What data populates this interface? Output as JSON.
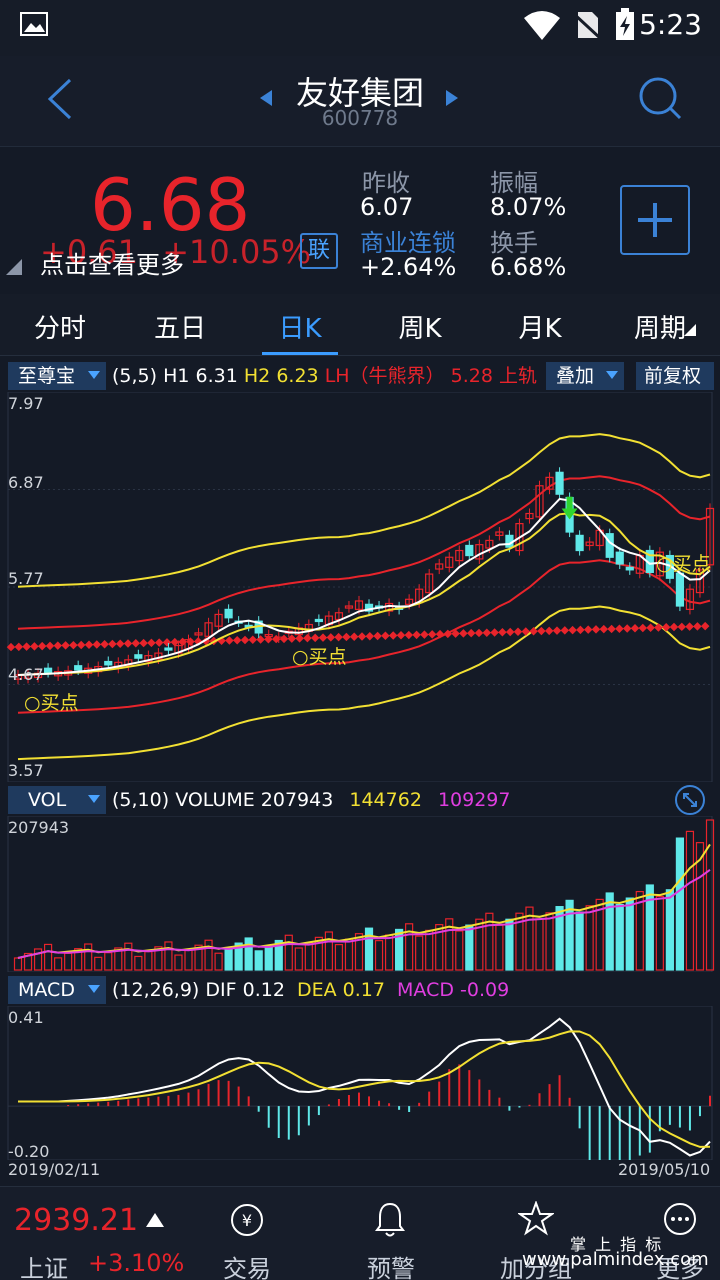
{
  "status": {
    "time": "5:23"
  },
  "header": {
    "title": "友好集团",
    "code": "600778"
  },
  "quote": {
    "price": "6.68",
    "change": "+0.61",
    "change_pct": "+10.05%",
    "overlay_hint": "点击查看更多",
    "lian_label": "联",
    "prev_close_label": "昨收",
    "prev_close": "6.07",
    "amplitude_label": "振幅",
    "amplitude": "8.07%",
    "sector_label": "商业连锁",
    "sector_change": "+2.64%",
    "turnover_label": "换手",
    "turnover": "6.68%",
    "colors": {
      "up": "#e8242b",
      "link": "#3b82d6"
    }
  },
  "tabs": [
    "分时",
    "五日",
    "日K",
    "周K",
    "月K",
    "周期"
  ],
  "active_tab": 2,
  "kline": {
    "indicator_name": "至尊宝",
    "params": "(5,5)",
    "h1_label": "H1",
    "h1": "6.31",
    "h2_label": "H2",
    "h2": "6.23",
    "lh_label": "LH（牛熊界）",
    "lh": "5.28",
    "upper_label": "上轨",
    "overlay_btn": "叠加",
    "adjust_btn": "前复权",
    "axis": [
      "7.97",
      "6.87",
      "5.77",
      "4.67",
      "3.57"
    ],
    "buy_label": "○买点"
  },
  "volume": {
    "indicator_name": "VOL",
    "params": "(5,10)",
    "label": "VOLUME",
    "v1": "207943",
    "v2": "144762",
    "v3": "109297",
    "axis_max": "207943"
  },
  "macd": {
    "indicator_name": "MACD",
    "params": "(12,26,9)",
    "dif_label": "DIF",
    "dif": "0.12",
    "dea_label": "DEA",
    "dea": "0.17",
    "macd_label": "MACD",
    "macd": "-0.09",
    "axis_top": "0.41",
    "axis_bottom": "-0.20",
    "date_start": "2019/02/11",
    "date_end": "2019/05/10"
  },
  "bottom": {
    "index_value": "2939.21",
    "index_name": "上证",
    "index_change": "+3.10%",
    "nav": [
      "交易",
      "预警",
      "加分组",
      "更多"
    ]
  },
  "watermark": {
    "cn": "掌 上 指 标",
    "url": "www.palmindex.com"
  },
  "chart_data": {
    "type": "candlestick",
    "ylim": [
      3.57,
      7.97
    ],
    "close": [
      4.7,
      4.71,
      4.72,
      4.73,
      4.74,
      4.75,
      4.76,
      4.78,
      4.8,
      4.82,
      4.85,
      4.88,
      4.9,
      4.93,
      4.96,
      5.0,
      5.05,
      5.12,
      5.2,
      5.32,
      5.42,
      5.38,
      5.33,
      5.28,
      5.2,
      5.18,
      5.15,
      5.22,
      5.26,
      5.3,
      5.34,
      5.4,
      5.44,
      5.52,
      5.58,
      5.46,
      5.5,
      5.55,
      5.48,
      5.6,
      5.72,
      5.9,
      6.02,
      6.1,
      6.18,
      6.12,
      6.25,
      6.3,
      6.4,
      6.22,
      6.5,
      6.62,
      6.95,
      7.05,
      6.85,
      6.4,
      6.18,
      6.28,
      6.42,
      6.1,
      6.02,
      5.95,
      6.12,
      5.92,
      6.16,
      5.85,
      5.52,
      5.72,
      5.95,
      6.68
    ],
    "ma_white": "5-day",
    "vol_max": 207943,
    "macd_range": [
      -0.2,
      0.41
    ]
  }
}
